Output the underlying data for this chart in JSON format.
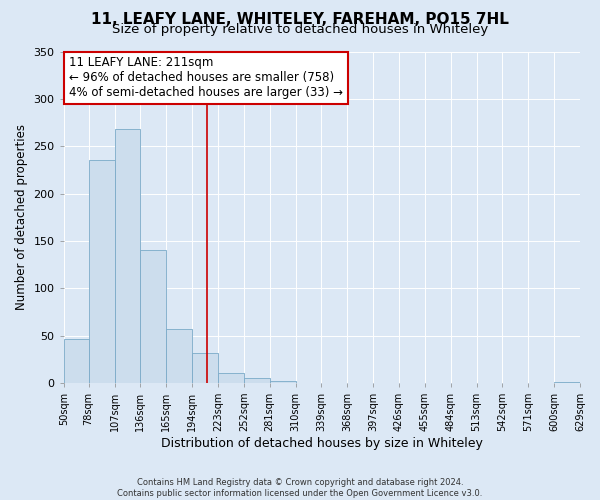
{
  "title": "11, LEAFY LANE, WHITELEY, FAREHAM, PO15 7HL",
  "subtitle": "Size of property relative to detached houses in Whiteley",
  "xlabel": "Distribution of detached houses by size in Whiteley",
  "ylabel": "Number of detached properties",
  "bar_edges": [
    50,
    78,
    107,
    136,
    165,
    194,
    223,
    252,
    281,
    310,
    339,
    368,
    397,
    426,
    455,
    484,
    513,
    542,
    571,
    600,
    629
  ],
  "bar_heights": [
    46,
    235,
    268,
    140,
    57,
    32,
    10,
    5,
    2,
    0,
    0,
    0,
    0,
    0,
    0,
    0,
    0,
    0,
    0,
    1
  ],
  "bar_color": "#ccdded",
  "bar_edgecolor": "#7aaac8",
  "vline_x": 211,
  "vline_color": "#cc0000",
  "annotation_title": "11 LEAFY LANE: 211sqm",
  "annotation_line1": "← 96% of detached houses are smaller (758)",
  "annotation_line2": "4% of semi-detached houses are larger (33) →",
  "annotation_box_edgecolor": "#cc0000",
  "annotation_box_facecolor": "#ffffff",
  "ylim": [
    0,
    350
  ],
  "yticks": [
    0,
    50,
    100,
    150,
    200,
    250,
    300,
    350
  ],
  "background_color": "#dce8f5",
  "axes_facecolor": "#dce8f5",
  "footer1": "Contains HM Land Registry data © Crown copyright and database right 2024.",
  "footer2": "Contains public sector information licensed under the Open Government Licence v3.0.",
  "title_fontsize": 11,
  "subtitle_fontsize": 9.5,
  "xlabel_fontsize": 9,
  "ylabel_fontsize": 8.5,
  "annotation_fontsize": 8.5,
  "tick_fontsize": 7,
  "ytick_fontsize": 8,
  "footer_fontsize": 6
}
